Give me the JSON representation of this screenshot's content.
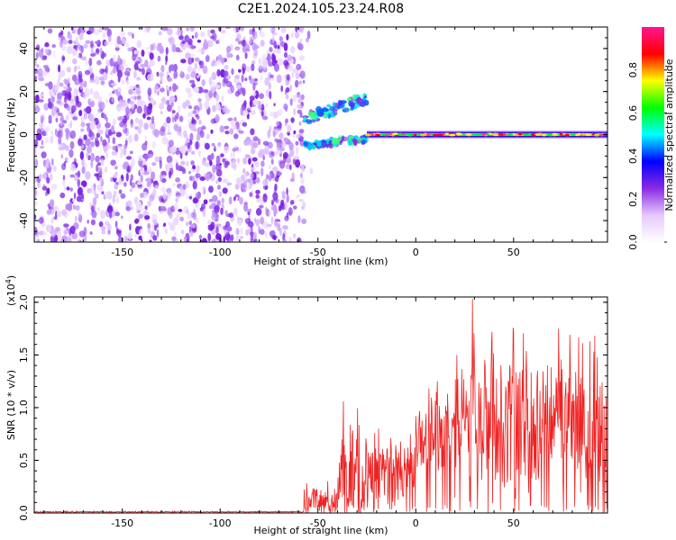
{
  "title": "C2E1.2024.105.23.24.R08",
  "chart_data": [
    {
      "type": "heatmap",
      "xlabel": "Height of straight line (km)",
      "ylabel": "Frequency (Hz)",
      "xlim": [
        -195,
        98
      ],
      "ylim": [
        -50,
        50
      ],
      "xticks": [
        -150,
        -100,
        -50,
        0,
        50
      ],
      "yticks": [
        -40,
        -20,
        0,
        20,
        40
      ],
      "grid": false,
      "colorbar": {
        "label": "Normalized spectral amplitude",
        "range": [
          0,
          1
        ],
        "ticks": [
          "0.0",
          "0.2",
          "0.4",
          "0.6",
          "0.8"
        ],
        "colormap": [
          "#ffffff",
          "#e6c8ff",
          "#8a2be2",
          "#0000ff",
          "#00ffff",
          "#00ff00",
          "#ffff00",
          "#ff0000",
          "#ff1493"
        ]
      },
      "regions": [
        {
          "x_range": [
            -195,
            -57
          ],
          "y_range": [
            -50,
            50
          ],
          "level": 0.2
        },
        {
          "x_range": [
            -57,
            -25
          ],
          "y_range": [
            -5,
            18
          ],
          "level": 0.4
        },
        {
          "x_range": [
            -25,
            98
          ],
          "y_range": [
            -2,
            2
          ],
          "level": 0.8
        }
      ]
    },
    {
      "type": "line",
      "xlabel": "Height of straight line (km)",
      "ylabel": "SNR (10 * v/v)",
      "yscale_label": "(x10",
      "yscale_exp": "4",
      "yscale_close": ")",
      "xlim": [
        -195,
        98
      ],
      "ylim": [
        0,
        2.05
      ],
      "xticks": [
        -150,
        -100,
        -50,
        0,
        50
      ],
      "yticks": [
        "0.0",
        "0.5",
        "1.0",
        "1.5",
        "2.0"
      ],
      "line_color": "#ee2222",
      "grid": false,
      "segments": [
        {
          "x_range": [
            -195,
            -57
          ],
          "mean": 0.01,
          "spread": 0.01
        },
        {
          "x_range": [
            -57,
            -40
          ],
          "mean": 0.1,
          "spread": 0.25
        },
        {
          "x_range": [
            -40,
            -25
          ],
          "mean": 0.35,
          "spread": 0.9
        },
        {
          "x_range": [
            -25,
            0
          ],
          "mean": 0.35,
          "spread": 0.5
        },
        {
          "x_range": [
            0,
            20
          ],
          "mean": 0.7,
          "spread": 0.6
        },
        {
          "x_range": [
            20,
            98
          ],
          "mean": 0.8,
          "spread": 1.1
        }
      ],
      "peaks": [
        [
          -37,
          1.06
        ],
        [
          -19,
          0.8
        ],
        [
          11,
          1.25
        ],
        [
          21,
          1.5
        ],
        [
          29,
          2.03
        ],
        [
          39,
          1.72
        ],
        [
          50,
          1.72
        ],
        [
          73,
          1.75
        ],
        [
          89,
          1.63
        ]
      ]
    }
  ]
}
